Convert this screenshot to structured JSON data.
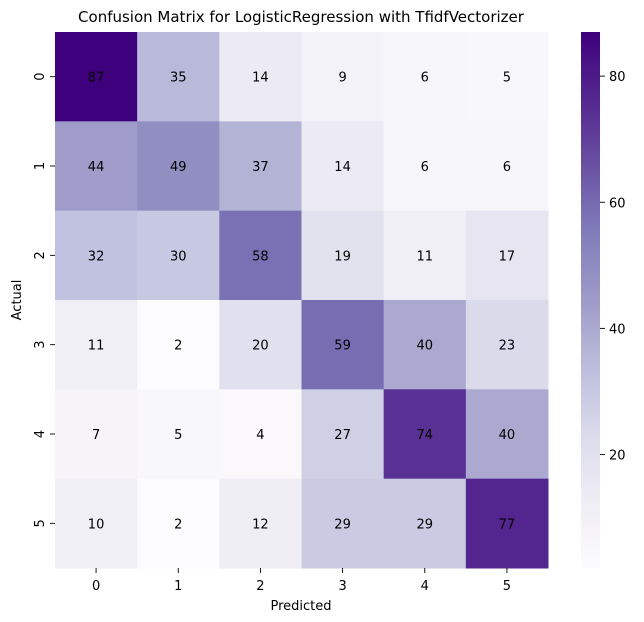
{
  "chart_data": {
    "type": "heatmap",
    "title": "Confusion Matrix for LogisticRegression with TfidfVectorizer",
    "xlabel": "Predicted",
    "ylabel": "Actual",
    "x_categories": [
      "0",
      "1",
      "2",
      "3",
      "4",
      "5"
    ],
    "y_categories": [
      "0",
      "1",
      "2",
      "3",
      "4",
      "5"
    ],
    "values": [
      [
        87,
        35,
        14,
        9,
        6,
        5
      ],
      [
        44,
        49,
        37,
        14,
        6,
        6
      ],
      [
        32,
        30,
        58,
        19,
        11,
        17
      ],
      [
        11,
        2,
        20,
        59,
        40,
        23
      ],
      [
        7,
        5,
        4,
        27,
        74,
        40
      ],
      [
        10,
        2,
        12,
        29,
        29,
        77
      ]
    ],
    "colormap": "Purples",
    "color_range": [
      2,
      87
    ],
    "colorbar_ticks": [
      20,
      40,
      60,
      80
    ],
    "annotations": true,
    "grid": false,
    "legend": "colorbar-right"
  }
}
